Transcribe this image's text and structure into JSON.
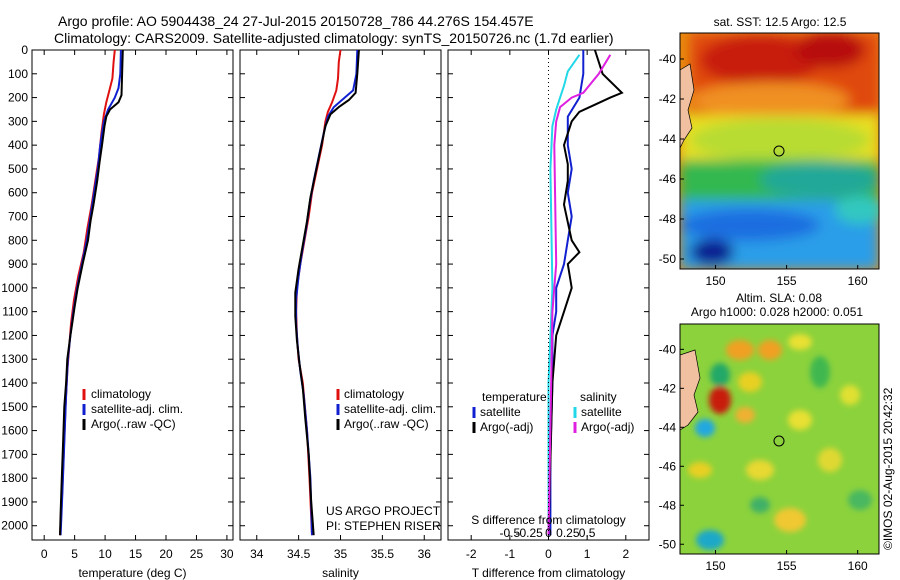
{
  "header": {
    "line1": "Argo profile: AO 5904438_24 27-Jul-2015 20150728_786 44.276S 154.457E",
    "line2": "Climatology: CARS2009. Satellite-adjusted climatology: synTS_20150726.nc (1.7d earlier)"
  },
  "colors": {
    "climatology": "#e01010",
    "satellite": "#1020d0",
    "argo": "#000000",
    "cyan": "#20d8e8",
    "magenta": "#e020e0"
  },
  "chart_data": [
    {
      "id": "temperature",
      "type": "line",
      "xlabel": "temperature (deg C)",
      "xlim": [
        -2,
        31
      ],
      "xticks": [
        0,
        5,
        10,
        15,
        20,
        25,
        30
      ],
      "ylim": [
        2060,
        0
      ],
      "yticks": [
        0,
        100,
        200,
        300,
        400,
        500,
        600,
        700,
        800,
        900,
        1000,
        1100,
        1200,
        1300,
        1400,
        1500,
        1600,
        1700,
        1800,
        1900,
        2000
      ],
      "legend": [
        "climatology",
        "satellite-adj. clim.",
        "Argo(..raw -QC)"
      ],
      "series": [
        {
          "name": "climatology",
          "points": [
            [
              11.6,
              0
            ],
            [
              11.4,
              50
            ],
            [
              11.2,
              120
            ],
            [
              10.7,
              170
            ],
            [
              10.2,
              220
            ],
            [
              9.8,
              270
            ],
            [
              9.4,
              350
            ],
            [
              9.0,
              450
            ],
            [
              8.4,
              550
            ],
            [
              7.8,
              650
            ],
            [
              7.1,
              750
            ],
            [
              6.5,
              850
            ],
            [
              5.6,
              950
            ],
            [
              4.9,
              1050
            ],
            [
              4.4,
              1150
            ],
            [
              4.1,
              1250
            ],
            [
              3.8,
              1350
            ],
            [
              3.5,
              1500
            ],
            [
              3.2,
              1700
            ],
            [
              2.9,
              1900
            ],
            [
              2.6,
              2040
            ]
          ]
        },
        {
          "name": "satellite",
          "points": [
            [
              12.6,
              0
            ],
            [
              12.5,
              100
            ],
            [
              12.2,
              160
            ],
            [
              11.6,
              200
            ],
            [
              10.5,
              250
            ],
            [
              9.8,
              300
            ],
            [
              9.2,
              400
            ],
            [
              8.8,
              500
            ],
            [
              8.2,
              600
            ],
            [
              7.6,
              700
            ],
            [
              7.0,
              800
            ],
            [
              6.2,
              900
            ],
            [
              5.4,
              1000
            ],
            [
              4.8,
              1100
            ],
            [
              4.3,
              1200
            ],
            [
              3.9,
              1300
            ],
            [
              3.6,
              1450
            ],
            [
              3.3,
              1650
            ],
            [
              3.0,
              1850
            ],
            [
              2.7,
              2040
            ]
          ]
        },
        {
          "name": "argo",
          "points": [
            [
              12.9,
              0
            ],
            [
              12.8,
              100
            ],
            [
              12.7,
              190
            ],
            [
              12.2,
              220
            ],
            [
              10.8,
              250
            ],
            [
              10.2,
              280
            ],
            [
              9.9,
              320
            ],
            [
              9.5,
              400
            ],
            [
              9.1,
              470
            ],
            [
              8.7,
              550
            ],
            [
              8.1,
              650
            ],
            [
              7.6,
              720
            ],
            [
              7.2,
              800
            ],
            [
              6.3,
              900
            ],
            [
              5.5,
              1000
            ],
            [
              5.0,
              1080
            ],
            [
              4.6,
              1150
            ],
            [
              4.3,
              1200
            ],
            [
              3.8,
              1300
            ],
            [
              3.6,
              1400
            ],
            [
              3.3,
              1500
            ],
            [
              3.1,
              1650
            ],
            [
              2.9,
              1800
            ],
            [
              2.7,
              1950
            ],
            [
              2.6,
              2040
            ]
          ]
        }
      ]
    },
    {
      "id": "salinity",
      "type": "line",
      "xlabel": "salinity",
      "xlim": [
        33.8,
        36.2
      ],
      "xticks": [
        34,
        34.5,
        35,
        35.5,
        36
      ],
      "xtick_labels": [
        "34",
        "34.5",
        "35",
        "35.5",
        "36"
      ],
      "ylim": [
        2060,
        0
      ],
      "legend": [
        "climatology",
        "satellite-adj. clim.",
        "Argo(..raw -QC)"
      ],
      "annotation": [
        "US ARGO PROJECT",
        "PI: STEPHEN RISER"
      ],
      "series": [
        {
          "name": "climatology",
          "points": [
            [
              35.0,
              0
            ],
            [
              34.98,
              50
            ],
            [
              34.97,
              120
            ],
            [
              34.95,
              170
            ],
            [
              34.9,
              220
            ],
            [
              34.85,
              260
            ],
            [
              34.82,
              300
            ],
            [
              34.78,
              400
            ],
            [
              34.72,
              500
            ],
            [
              34.66,
              600
            ],
            [
              34.62,
              700
            ],
            [
              34.57,
              800
            ],
            [
              34.52,
              900
            ],
            [
              34.48,
              1000
            ],
            [
              34.47,
              1100
            ],
            [
              34.48,
              1200
            ],
            [
              34.5,
              1300
            ],
            [
              34.55,
              1400
            ],
            [
              34.6,
              1600
            ],
            [
              34.63,
              1800
            ],
            [
              34.66,
              2040
            ]
          ]
        },
        {
          "name": "satellite",
          "points": [
            [
              35.2,
              0
            ],
            [
              35.19,
              100
            ],
            [
              35.15,
              170
            ],
            [
              35.05,
              200
            ],
            [
              34.92,
              240
            ],
            [
              34.85,
              280
            ],
            [
              34.8,
              350
            ],
            [
              34.74,
              450
            ],
            [
              34.68,
              550
            ],
            [
              34.63,
              650
            ],
            [
              34.59,
              750
            ],
            [
              34.54,
              850
            ],
            [
              34.5,
              950
            ],
            [
              34.47,
              1050
            ],
            [
              34.47,
              1150
            ],
            [
              34.49,
              1250
            ],
            [
              34.52,
              1350
            ],
            [
              34.56,
              1450
            ],
            [
              34.6,
              1600
            ],
            [
              34.64,
              1800
            ],
            [
              34.66,
              2040
            ]
          ]
        },
        {
          "name": "argo",
          "points": [
            [
              35.22,
              0
            ],
            [
              35.2,
              100
            ],
            [
              35.18,
              180
            ],
            [
              35.1,
              210
            ],
            [
              34.98,
              240
            ],
            [
              34.88,
              270
            ],
            [
              34.82,
              320
            ],
            [
              34.76,
              420
            ],
            [
              34.7,
              520
            ],
            [
              34.64,
              620
            ],
            [
              34.6,
              720
            ],
            [
              34.55,
              820
            ],
            [
              34.5,
              920
            ],
            [
              34.46,
              1020
            ],
            [
              34.46,
              1120
            ],
            [
              34.48,
              1220
            ],
            [
              34.51,
              1320
            ],
            [
              34.55,
              1420
            ],
            [
              34.58,
              1550
            ],
            [
              34.62,
              1700
            ],
            [
              34.65,
              1900
            ],
            [
              34.68,
              2040
            ]
          ]
        }
      ]
    },
    {
      "id": "difference",
      "type": "line",
      "xlabel": "T difference from climatology",
      "xlabel_top": "S difference from climatology",
      "xlim": [
        -2.6,
        2.6
      ],
      "xticks": [
        -2,
        -1,
        0,
        1,
        2
      ],
      "xtick_labels": [
        "-2",
        "-1",
        "0",
        "1",
        "2"
      ],
      "xticks_s": [
        -1,
        -0.5,
        0,
        0.5,
        1
      ],
      "xtick_labels_s": [
        "-0.5",
        "-0.25",
        "0",
        "0.25",
        "0.5"
      ],
      "ylim": [
        2060,
        0
      ],
      "legend_temperature_title": "temperature",
      "legend_salinity_title": "salinity",
      "legend": [
        "satellite",
        "Argo(-adj)",
        "satellite",
        "Argo(-adj)"
      ],
      "series": [
        {
          "name": "T satellite",
          "points": [
            [
              0.9,
              0
            ],
            [
              0.9,
              100
            ],
            [
              0.8,
              200
            ],
            [
              0.5,
              280
            ],
            [
              0.5,
              400
            ],
            [
              0.6,
              500
            ],
            [
              0.5,
              600
            ],
            [
              0.6,
              700
            ],
            [
              0.5,
              800
            ],
            [
              0.4,
              900
            ],
            [
              0.2,
              1000
            ],
            [
              0.2,
              1100
            ],
            [
              0.1,
              1200
            ],
            [
              0.1,
              1400
            ],
            [
              0.05,
              1700
            ],
            [
              0.05,
              2040
            ]
          ]
        },
        {
          "name": "T argo",
          "points": [
            [
              1.2,
              0
            ],
            [
              1.4,
              100
            ],
            [
              1.9,
              180
            ],
            [
              1.6,
              200
            ],
            [
              1.2,
              230
            ],
            [
              0.8,
              260
            ],
            [
              0.6,
              300
            ],
            [
              0.4,
              400
            ],
            [
              0.5,
              480
            ],
            [
              0.5,
              550
            ],
            [
              0.4,
              650
            ],
            [
              0.6,
              800
            ],
            [
              0.8,
              850
            ],
            [
              0.5,
              900
            ],
            [
              0.6,
              1000
            ],
            [
              0.4,
              1100
            ],
            [
              0.2,
              1200
            ],
            [
              0.1,
              1400
            ],
            [
              0.0,
              2040
            ]
          ]
        },
        {
          "name": "S satellite",
          "points": [
            [
              0.8,
              20
            ],
            [
              0.5,
              90
            ],
            [
              0.4,
              150
            ],
            [
              0.3,
              200
            ],
            [
              0.2,
              250
            ],
            [
              0.1,
              320
            ],
            [
              0.05,
              500
            ],
            [
              0.1,
              1000
            ],
            [
              0.0,
              1400
            ],
            [
              0.0,
              2040
            ]
          ]
        },
        {
          "name": "S argo",
          "points": [
            [
              1.6,
              20
            ],
            [
              1.3,
              100
            ],
            [
              0.9,
              180
            ],
            [
              0.6,
              200
            ],
            [
              0.3,
              240
            ],
            [
              0.2,
              300
            ],
            [
              0.15,
              400
            ],
            [
              0.2,
              900
            ],
            [
              0.1,
              1100
            ],
            [
              0.0,
              2040
            ]
          ]
        }
      ]
    },
    {
      "id": "sst_map",
      "type": "heatmap",
      "title": "sat. SST: 12.5 Argo: 12.5",
      "xlim": [
        147.5,
        161.5
      ],
      "ylim": [
        -50.5,
        -38.7
      ],
      "xticks": [
        150,
        155,
        160
      ],
      "yticks": [
        -40,
        -42,
        -44,
        -46,
        -48,
        -50
      ],
      "marker": {
        "lon": 154.457,
        "lat": -44.276
      }
    },
    {
      "id": "sla_map",
      "type": "heatmap",
      "title_line1": "Altim. SLA: 0.08",
      "title_line2": "Argo h1000: 0.028 h2000: 0.051",
      "xlim": [
        147.5,
        161.5
      ],
      "ylim": [
        -50.5,
        -38.7
      ],
      "xticks": [
        150,
        155,
        160
      ],
      "yticks": [
        -40,
        -42,
        -44,
        -46,
        -48,
        -50
      ],
      "marker": {
        "lon": 154.457,
        "lat": -44.276
      }
    }
  ],
  "footer": {
    "stamp": "©IMOS 02-Aug-2015 20:42:32"
  }
}
